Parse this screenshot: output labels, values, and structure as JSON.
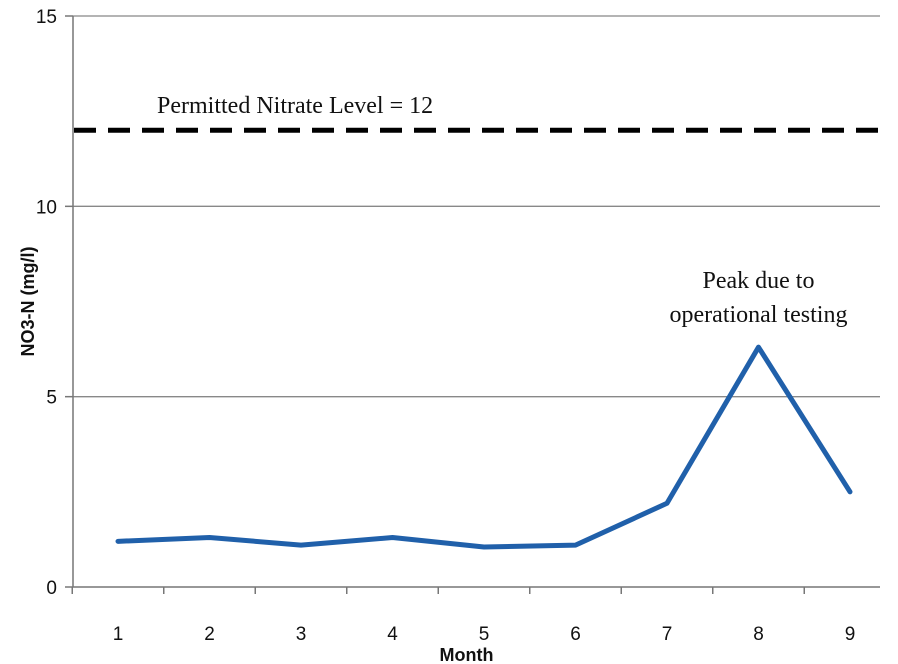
{
  "chart_data": {
    "type": "line",
    "title": "",
    "xlabel": "Month",
    "ylabel": "NO3-N (mg/l)",
    "x": [
      1,
      2,
      3,
      4,
      5,
      6,
      7,
      8,
      9
    ],
    "series": [
      {
        "values": [
          1.2,
          1.3,
          1.1,
          1.3,
          1.05,
          1.1,
          2.2,
          6.3,
          2.5
        ],
        "color": "#2060aa"
      }
    ],
    "ylim": [
      0,
      15
    ],
    "yticks": [
      0,
      5,
      10,
      15
    ],
    "ytick_labels": [
      "0",
      "5",
      "10",
      "15"
    ],
    "xticks": [
      1,
      2,
      3,
      4,
      5,
      6,
      7,
      8,
      9
    ],
    "xtick_labels": [
      "1",
      "2",
      "3",
      "4",
      "5",
      "6",
      "7",
      "8",
      "9"
    ],
    "grid": true,
    "reference_line": {
      "y": 12,
      "label": "Permitted Nitrate Level = 12",
      "style": "dashed",
      "color": "#000000"
    },
    "annotations": [
      {
        "lines": [
          "Peak due to",
          "operational testing"
        ],
        "x": 8
      }
    ]
  }
}
